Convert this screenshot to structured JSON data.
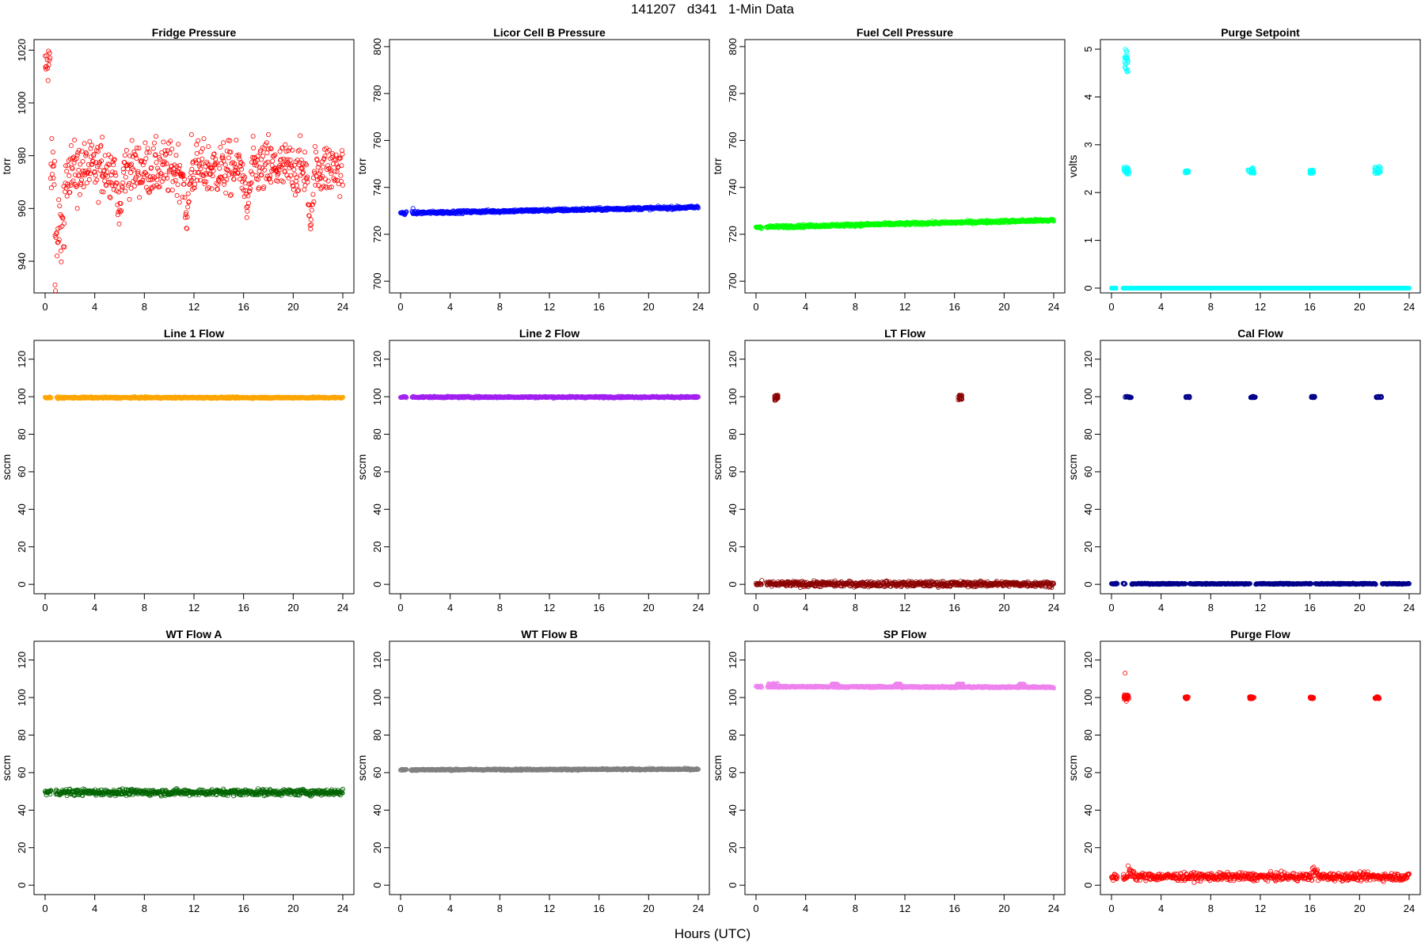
{
  "title": "141207   d341   1-Min Data",
  "xlabel": "Hours (UTC)",
  "chart_data": [
    {
      "type": "scatter",
      "title": "Fridge Pressure",
      "ylabel": "torr",
      "color": "#ff0000",
      "xlim": [
        0,
        24
      ],
      "ylim": [
        928,
        1024
      ],
      "xticks": [
        0,
        4,
        8,
        12,
        16,
        20,
        24
      ],
      "yticks": [
        940,
        960,
        980,
        1000,
        1020
      ],
      "pattern": "noisy",
      "base": 975,
      "noise": 5,
      "drift": 0,
      "segments": [
        [
          0,
          0.4,
          1015,
          4
        ],
        [
          0.8,
          1.6,
          950,
          8
        ]
      ],
      "dips": [
        [
          6.0,
          955,
          0.35
        ],
        [
          11.4,
          955,
          0.4
        ],
        [
          16.3,
          958,
          0.4
        ],
        [
          21.4,
          952,
          0.35
        ]
      ],
      "outliers": [
        [
          0.8,
          931
        ],
        [
          11.8,
          988
        ],
        [
          18.0,
          988
        ],
        [
          4.6,
          987
        ],
        [
          2.6,
          960
        ]
      ]
    },
    {
      "type": "scatter",
      "title": "Licor Cell B Pressure",
      "ylabel": "torr",
      "color": "#0000ff",
      "xlim": [
        0,
        24
      ],
      "ylim": [
        695,
        803
      ],
      "xticks": [
        0,
        4,
        8,
        12,
        16,
        20,
        24
      ],
      "yticks": [
        700,
        720,
        740,
        760,
        780,
        800
      ],
      "pattern": "line",
      "base": 729,
      "noise": 0.3,
      "drift": 2.5,
      "gaps": [
        [
          0.5,
          0.9
        ]
      ],
      "outliers": [
        [
          1.0,
          731
        ]
      ]
    },
    {
      "type": "scatter",
      "title": "Fuel Cell Pressure",
      "ylabel": "torr",
      "color": "#00ff00",
      "xlim": [
        0,
        24
      ],
      "ylim": [
        695,
        803
      ],
      "xticks": [
        0,
        4,
        8,
        12,
        16,
        20,
        24
      ],
      "yticks": [
        700,
        720,
        740,
        760,
        780,
        800
      ],
      "pattern": "line",
      "base": 723,
      "noise": 0.3,
      "drift": 3,
      "gaps": [
        [
          0.5,
          0.8
        ]
      ]
    },
    {
      "type": "scatter",
      "title": "Purge Setpoint",
      "ylabel": "volts",
      "color": "#00ffff",
      "xlim": [
        0,
        24
      ],
      "ylim": [
        -0.1,
        5.2
      ],
      "xticks": [
        0,
        4,
        8,
        12,
        16,
        20,
        24
      ],
      "yticks": [
        0,
        1,
        2,
        3,
        4,
        5
      ],
      "pattern": "line",
      "base": 0,
      "noise": 0,
      "drift": 0,
      "gaps": [
        [
          0.4,
          0.9
        ]
      ],
      "clusters": [
        [
          1.05,
          1.35,
          4.5,
          5.0
        ],
        [
          1.0,
          1.4,
          2.38,
          2.55
        ],
        [
          5.9,
          6.2,
          2.4,
          2.46
        ],
        [
          11.0,
          11.5,
          2.4,
          2.52
        ],
        [
          16.0,
          16.3,
          2.4,
          2.47
        ],
        [
          21.2,
          21.7,
          2.4,
          2.55
        ]
      ]
    },
    {
      "type": "scatter",
      "title": "Line 1 Flow",
      "ylabel": "sccm",
      "color": "#ffa500",
      "xlim": [
        0,
        24
      ],
      "ylim": [
        -5,
        130
      ],
      "xticks": [
        0,
        4,
        8,
        12,
        16,
        20,
        24
      ],
      "yticks": [
        0,
        20,
        40,
        60,
        80,
        100,
        120
      ],
      "pattern": "line",
      "base": 99.5,
      "noise": 0.2,
      "drift": 0,
      "gaps": [
        [
          0.5,
          0.9
        ]
      ]
    },
    {
      "type": "scatter",
      "title": "Line 2 Flow",
      "ylabel": "sccm",
      "color": "#a020f0",
      "xlim": [
        0,
        24
      ],
      "ylim": [
        -5,
        130
      ],
      "xticks": [
        0,
        4,
        8,
        12,
        16,
        20,
        24
      ],
      "yticks": [
        0,
        20,
        40,
        60,
        80,
        100,
        120
      ],
      "pattern": "line",
      "base": 99.8,
      "noise": 0.2,
      "drift": 0,
      "gaps": [
        [
          0.5,
          0.9
        ]
      ]
    },
    {
      "type": "scatter",
      "title": "LT Flow",
      "ylabel": "sccm",
      "color": "#8b0000",
      "xlim": [
        0,
        24
      ],
      "ylim": [
        -5,
        130
      ],
      "xticks": [
        0,
        4,
        8,
        12,
        16,
        20,
        24
      ],
      "yticks": [
        0,
        20,
        40,
        60,
        80,
        100,
        120
      ],
      "pattern": "noisy",
      "base": 0.2,
      "noise": 0.7,
      "drift": 0,
      "gaps": [
        [
          0.5,
          0.8
        ]
      ],
      "clusters": [
        [
          1.5,
          1.8,
          98,
          101
        ],
        [
          16.3,
          16.6,
          98,
          101
        ]
      ]
    },
    {
      "type": "scatter",
      "title": "Cal Flow",
      "ylabel": "sccm",
      "color": "#00008b",
      "xlim": [
        0,
        24
      ],
      "ylim": [
        -5,
        130
      ],
      "xticks": [
        0,
        4,
        8,
        12,
        16,
        20,
        24
      ],
      "yticks": [
        0,
        20,
        40,
        60,
        80,
        100,
        120
      ],
      "pattern": "line",
      "base": 0.3,
      "noise": 0.15,
      "drift": 0,
      "gaps": [
        [
          0.5,
          0.9
        ],
        [
          1.1,
          1.6
        ],
        [
          6.0,
          6.3
        ],
        [
          11.2,
          11.6
        ],
        [
          16.1,
          16.4
        ],
        [
          21.3,
          21.8
        ]
      ],
      "clusters": [
        [
          1.1,
          1.6,
          99.5,
          100.2
        ],
        [
          6.0,
          6.3,
          99.5,
          100.2
        ],
        [
          11.2,
          11.6,
          99.5,
          100.2
        ],
        [
          16.1,
          16.4,
          99.5,
          100.2
        ],
        [
          21.3,
          21.8,
          99.5,
          100.2
        ]
      ]
    },
    {
      "type": "scatter",
      "title": "WT Flow A",
      "ylabel": "sccm",
      "color": "#006400",
      "xlim": [
        0,
        24
      ],
      "ylim": [
        -5,
        130
      ],
      "xticks": [
        0,
        4,
        8,
        12,
        16,
        20,
        24
      ],
      "yticks": [
        0,
        20,
        40,
        60,
        80,
        100,
        120
      ],
      "pattern": "noisy",
      "base": 49.5,
      "noise": 0.8,
      "drift": 0,
      "gaps": [
        [
          0.5,
          0.8
        ]
      ]
    },
    {
      "type": "scatter",
      "title": "WT Flow B",
      "ylabel": "sccm",
      "color": "#808080",
      "xlim": [
        0,
        24
      ],
      "ylim": [
        -5,
        130
      ],
      "xticks": [
        0,
        4,
        8,
        12,
        16,
        20,
        24
      ],
      "yticks": [
        0,
        20,
        40,
        60,
        80,
        100,
        120
      ],
      "pattern": "line",
      "base": 61.5,
      "noise": 0.2,
      "drift": 0.3,
      "gaps": [
        [
          0.5,
          0.8
        ]
      ]
    },
    {
      "type": "scatter",
      "title": "SP Flow",
      "ylabel": "sccm",
      "color": "#ee82ee",
      "xlim": [
        0,
        24
      ],
      "ylim": [
        -5,
        130
      ],
      "xticks": [
        0,
        4,
        8,
        12,
        16,
        20,
        24
      ],
      "yticks": [
        0,
        20,
        40,
        60,
        80,
        100,
        120
      ],
      "pattern": "line",
      "base": 105.8,
      "noise": 0.2,
      "drift": -0.3,
      "gaps": [
        [
          0.5,
          0.9
        ]
      ],
      "clusters": [
        [
          1.0,
          1.8,
          106.5,
          107.5
        ],
        [
          6.1,
          6.6,
          106.5,
          107.3
        ],
        [
          11.2,
          11.7,
          106.5,
          107.3
        ],
        [
          16.2,
          16.7,
          106.5,
          107.3
        ],
        [
          21.2,
          21.7,
          106.5,
          107.3
        ]
      ]
    },
    {
      "type": "scatter",
      "title": "Purge Flow",
      "ylabel": "sccm",
      "color": "#ff0000",
      "xlim": [
        0,
        24
      ],
      "ylim": [
        -5,
        130
      ],
      "xticks": [
        0,
        4,
        8,
        12,
        16,
        20,
        24
      ],
      "yticks": [
        0,
        20,
        40,
        60,
        80,
        100,
        120
      ],
      "pattern": "noisy",
      "base": 4.5,
      "noise": 1.0,
      "drift": 0,
      "gaps": [
        [
          0.5,
          0.9
        ]
      ],
      "segments": [
        [
          1.3,
          1.8,
          7,
          1.5
        ],
        [
          16.2,
          16.6,
          7,
          1.5
        ]
      ],
      "clusters": [
        [
          1.0,
          1.4,
          99,
          101.5
        ],
        [
          5.9,
          6.2,
          99.3,
          100.5
        ],
        [
          11.1,
          11.5,
          99.3,
          100.5
        ],
        [
          16.0,
          16.3,
          99.3,
          100.5
        ],
        [
          21.2,
          21.6,
          99.3,
          100.5
        ]
      ],
      "outliers": [
        [
          1.1,
          113
        ],
        [
          1.2,
          98
        ]
      ]
    }
  ]
}
